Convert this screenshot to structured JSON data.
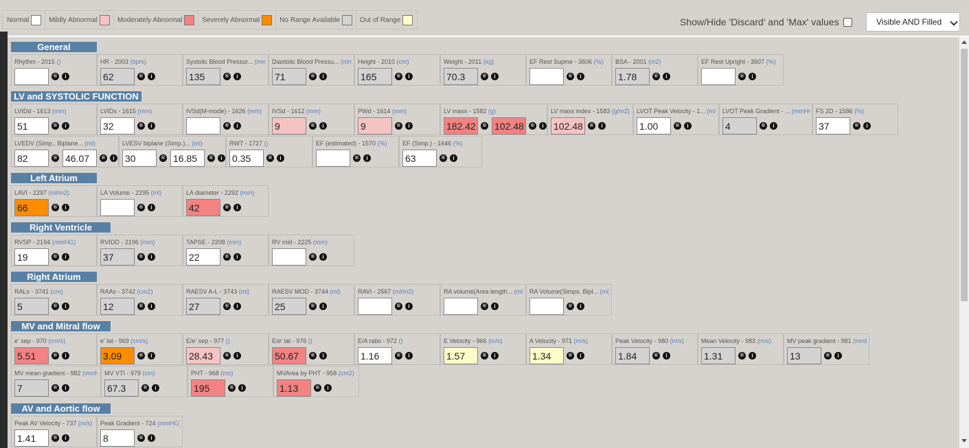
{
  "legend": [
    {
      "label": "Normal",
      "color": "#ffffff"
    },
    {
      "label": "Mildly Abnormal",
      "color": "#f6c3c3"
    },
    {
      "label": "Moderately Abnormal",
      "color": "#f38283"
    },
    {
      "label": "Severely Abnormal",
      "color": "#fb8c00"
    },
    {
      "label": "No Range Available",
      "color": "#d3d3d3"
    },
    {
      "label": "Out of Range",
      "color": "#fdfbc8"
    }
  ],
  "toggle_label": "Show/Hide 'Discard' and 'Max' values",
  "filter_select": "Visible AND Filled",
  "reset_icon_glyph": "®",
  "info_icon_glyph": "i",
  "sections": [
    {
      "title": "General",
      "rows": [
        [
          {
            "label": "Rhythm - 2015",
            "unit": "()",
            "values": [
              {
                "v": "",
                "s": "normal"
              }
            ]
          },
          {
            "label": "HR - 2003",
            "unit": "(bpm)",
            "values": [
              {
                "v": "62",
                "s": "gray"
              }
            ]
          },
          {
            "label": "Systolic Blood Pressur...",
            "unit": "(mmHG)",
            "values": [
              {
                "v": "135",
                "s": "gray"
              }
            ]
          },
          {
            "label": "Diastolic Blood Pressu...",
            "unit": "(mmHG)",
            "values": [
              {
                "v": "71",
                "s": "gray"
              }
            ]
          },
          {
            "label": "Height - 2010",
            "unit": "(cm)",
            "values": [
              {
                "v": "165",
                "s": "gray"
              }
            ]
          },
          {
            "label": "Weight - 2011",
            "unit": "(kg)",
            "values": [
              {
                "v": "70.3",
                "s": "gray"
              }
            ]
          },
          {
            "label": "EF Rest Supine - 3606",
            "unit": "(%)",
            "values": [
              {
                "v": "",
                "s": "normal"
              }
            ]
          },
          {
            "label": "BSA - 2001",
            "unit": "(m2)",
            "values": [
              {
                "v": "1.78",
                "s": "gray"
              }
            ]
          },
          {
            "label": "EF Rest Upright - 3607",
            "unit": "(%)",
            "values": [
              {
                "v": "",
                "s": "normal"
              }
            ]
          }
        ]
      ]
    },
    {
      "title": "LV and SYSTOLIC FUNCTION",
      "rows": [
        [
          {
            "label": "LVIDd - 1613",
            "unit": "(mm)",
            "values": [
              {
                "v": "51",
                "s": "normal"
              }
            ]
          },
          {
            "label": "LVIDs - 1615",
            "unit": "(mm)",
            "values": [
              {
                "v": "32",
                "s": "normal"
              }
            ]
          },
          {
            "label": "IVSd(M-mode) - 1626",
            "unit": "(mm)",
            "values": [
              {
                "v": "",
                "s": "normal"
              }
            ]
          },
          {
            "label": "IVSd - 1612",
            "unit": "(mm)",
            "values": [
              {
                "v": "9",
                "s": "mild"
              }
            ]
          },
          {
            "label": "PWd - 1614",
            "unit": "(mm)",
            "values": [
              {
                "v": "9",
                "s": "mild"
              }
            ]
          },
          {
            "label": "LV mass - 1582",
            "unit": "(g)",
            "values": [
              {
                "v": "182.42",
                "s": "mod"
              },
              {
                "v": "102.48",
                "s": "mod"
              }
            ]
          },
          {
            "label": "LV mass index - 1583",
            "unit": "(g/m2)",
            "values": [
              {
                "v": "102.48",
                "s": "mild"
              }
            ]
          },
          {
            "label": "LVOT Peak Velocity - 1...",
            "unit": "(m/s)",
            "values": [
              {
                "v": "1.00",
                "s": "normal"
              }
            ]
          },
          {
            "label": "LVOT Peak Gradient - ...",
            "unit": "(mmHG)",
            "values": [
              {
                "v": "4",
                "s": "gray"
              }
            ]
          },
          {
            "label": "FS 2D - 1586",
            "unit": "(%)",
            "values": [
              {
                "v": "37",
                "s": "normal"
              }
            ]
          }
        ],
        [
          {
            "label": "LVEDV (Simp., Biplane...",
            "unit": "(ml)",
            "values": [
              {
                "v": "82",
                "s": "normal"
              },
              {
                "v": "46.07",
                "s": "normal"
              }
            ]
          },
          {
            "label": "LVESV biplane (Simp.)...",
            "unit": "(ml)",
            "values": [
              {
                "v": "30",
                "s": "normal"
              },
              {
                "v": "16.85",
                "s": "normal"
              }
            ]
          },
          {
            "label": "RWT - 1727",
            "unit": "()",
            "values": [
              {
                "v": "0.35",
                "s": "normal"
              }
            ]
          },
          {
            "label": "EF (estimated) - 1570",
            "unit": "(%)",
            "values": [
              {
                "v": "",
                "s": "normal"
              }
            ]
          },
          {
            "label": "EF (Simp.) - 1646",
            "unit": "(%)",
            "values": [
              {
                "v": "63",
                "s": "normal"
              }
            ]
          }
        ]
      ]
    },
    {
      "title": "Left Atrium",
      "rows": [
        [
          {
            "label": "LAVI - 2297",
            "unit": "(ml/m2)",
            "values": [
              {
                "v": "66",
                "s": "sev"
              }
            ]
          },
          {
            "label": "LA Volume - 2295",
            "unit": "(ml)",
            "values": [
              {
                "v": "",
                "s": "normal"
              }
            ]
          },
          {
            "label": "LA diameter - 2292",
            "unit": "(mm)",
            "values": [
              {
                "v": "42",
                "s": "mod"
              }
            ]
          }
        ]
      ]
    },
    {
      "title": "Right Ventricle",
      "rows": [
        [
          {
            "label": "RVSP - 2194",
            "unit": "(mmHG)",
            "values": [
              {
                "v": "19",
                "s": "normal"
              }
            ]
          },
          {
            "label": "RVIDD - 2196",
            "unit": "(mm)",
            "values": [
              {
                "v": "37",
                "s": "gray"
              }
            ]
          },
          {
            "label": "TAPSE - 2208",
            "unit": "(mm)",
            "values": [
              {
                "v": "22",
                "s": "normal"
              }
            ]
          },
          {
            "label": "RV mid - 2225",
            "unit": "(mm)",
            "values": [
              {
                "v": "",
                "s": "normal"
              }
            ]
          }
        ]
      ]
    },
    {
      "title": "Right Atrium",
      "rows": [
        [
          {
            "label": "RALs - 3741",
            "unit": "(cm)",
            "values": [
              {
                "v": "5",
                "s": "gray"
              }
            ]
          },
          {
            "label": "RAAs - 3742",
            "unit": "(cm2)",
            "values": [
              {
                "v": "12",
                "s": "gray"
              }
            ]
          },
          {
            "label": "RAESV A-L - 3743",
            "unit": "(ml)",
            "values": [
              {
                "v": "27",
                "s": "gray"
              }
            ]
          },
          {
            "label": "RAESV MOD - 3744",
            "unit": "(ml)",
            "values": [
              {
                "v": "25",
                "s": "gray"
              }
            ]
          },
          {
            "label": "RAVI - 2567",
            "unit": "(ml/m2)",
            "values": [
              {
                "v": "",
                "s": "normal"
              }
            ]
          },
          {
            "label": "RA volume(Area length...",
            "unit": "(ml)",
            "values": [
              {
                "v": "",
                "s": "normal"
              }
            ]
          },
          {
            "label": "RA Volume(Simps, Bipl...",
            "unit": "(ml)",
            "values": [
              {
                "v": "",
                "s": "normal"
              }
            ]
          }
        ]
      ]
    },
    {
      "title": "MV and Mitral flow",
      "rows": [
        [
          {
            "label": "e' sep - 970",
            "unit": "(cm/s)",
            "values": [
              {
                "v": "5.51",
                "s": "mod"
              }
            ]
          },
          {
            "label": "e' lat - 969",
            "unit": "(cm/s)",
            "values": [
              {
                "v": "3.09",
                "s": "sev"
              }
            ]
          },
          {
            "label": "E/e' sep - 977",
            "unit": "()",
            "values": [
              {
                "v": "28.43",
                "s": "mild"
              }
            ]
          },
          {
            "label": "E/e' lat - 976",
            "unit": "()",
            "values": [
              {
                "v": "50.67",
                "s": "mod"
              }
            ]
          },
          {
            "label": "E/A ratio - 972",
            "unit": "()",
            "values": [
              {
                "v": "1.16",
                "s": "normal"
              }
            ]
          },
          {
            "label": "E Velocity - 966",
            "unit": "(m/s)",
            "values": [
              {
                "v": "1.57",
                "s": "oor"
              }
            ]
          },
          {
            "label": "A Velocity - 971",
            "unit": "(m/s)",
            "values": [
              {
                "v": "1.34",
                "s": "oor"
              }
            ]
          },
          {
            "label": "Peak Velocity - 980",
            "unit": "(m/s)",
            "values": [
              {
                "v": "1.84",
                "s": "gray"
              }
            ]
          },
          {
            "label": "Mean Velocity - 983",
            "unit": "(m/s)",
            "values": [
              {
                "v": "1.31",
                "s": "gray"
              }
            ]
          },
          {
            "label": "MV peak gradient - 981",
            "unit": "(mmHG)",
            "values": [
              {
                "v": "13",
                "s": "gray"
              }
            ]
          }
        ],
        [
          {
            "label": "MV mean gradient - 982",
            "unit": "(mmHG)",
            "values": [
              {
                "v": "7",
                "s": "gray"
              }
            ]
          },
          {
            "label": "MV VTI - 979",
            "unit": "(cm)",
            "values": [
              {
                "v": "67.3",
                "s": "gray"
              }
            ]
          },
          {
            "label": "PHT - 968",
            "unit": "(ms)",
            "values": [
              {
                "v": "195",
                "s": "mod"
              }
            ]
          },
          {
            "label": "MVArea by PHT - 958",
            "unit": "(cm2)",
            "values": [
              {
                "v": "1.13",
                "s": "mod"
              }
            ]
          }
        ]
      ]
    },
    {
      "title": "AV and Aortic flow",
      "rows": [
        [
          {
            "label": "Peak AV Velocity - 737",
            "unit": "(m/s)",
            "values": [
              {
                "v": "1.41",
                "s": "normal"
              }
            ]
          },
          {
            "label": "Peak Gradient - 724",
            "unit": "(mmHG)",
            "values": [
              {
                "v": "8",
                "s": "normal"
              }
            ]
          }
        ]
      ]
    }
  ]
}
